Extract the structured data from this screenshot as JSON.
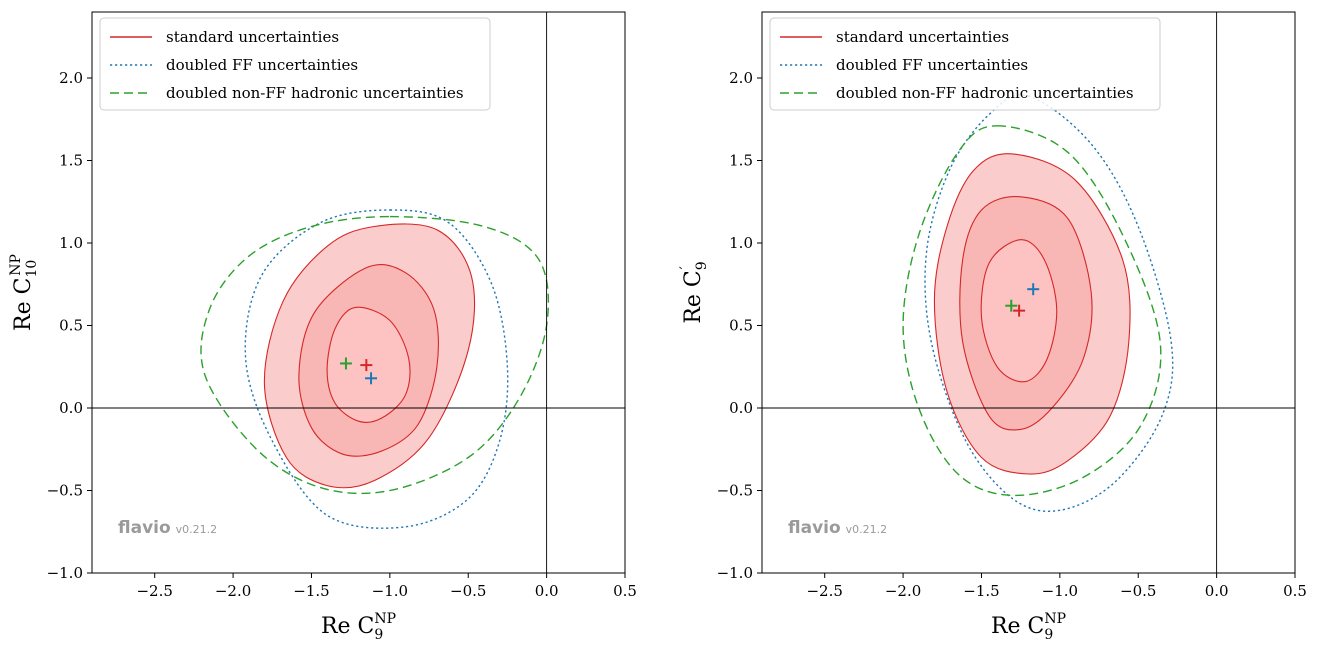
{
  "chart_data": [
    {
      "type": "contour",
      "panel": "left",
      "xlabel": {
        "main": "Re C",
        "sub": "9",
        "sup": "NP"
      },
      "ylabel": {
        "main": "Re C",
        "sub": "10",
        "sup": "NP"
      },
      "xlim": [
        -2.9,
        0.5
      ],
      "ylim": [
        -1.0,
        2.4
      ],
      "xticks": [
        -2.5,
        -2.0,
        -1.5,
        -1.0,
        -0.5,
        0.0,
        0.5
      ],
      "yticks": [
        -1.0,
        -0.5,
        0.0,
        0.5,
        1.0,
        1.5,
        2.0
      ],
      "xtick_labels": [
        "−2.5",
        "−2.0",
        "−1.5",
        "−1.0",
        "−0.5",
        "0.0",
        "0.5"
      ],
      "ytick_labels": [
        "−1.0",
        "−0.5",
        "0.0",
        "0.5",
        "1.0",
        "1.5",
        "2.0"
      ],
      "reference_lines": {
        "x": 0.0,
        "y": 0.0
      },
      "legend": {
        "location": "upper-left",
        "entries": [
          "standard uncertainties",
          "doubled FF uncertainties",
          "doubled non-FF hadronic uncertainties"
        ]
      },
      "series": [
        {
          "name": "standard uncertainties",
          "style": "solid-filled",
          "color": "#d62728",
          "contours": [
            [
              [
                -1.22,
                0.61
              ],
              [
                -1.0,
                0.53
              ],
              [
                -0.88,
                0.3
              ],
              [
                -0.9,
                0.08
              ],
              [
                -1.05,
                -0.06
              ],
              [
                -1.2,
                -0.08
              ],
              [
                -1.35,
                0.03
              ],
              [
                -1.4,
                0.23
              ],
              [
                -1.35,
                0.48
              ]
            ],
            [
              [
                -1.15,
                0.85
              ],
              [
                -0.9,
                0.82
              ],
              [
                -0.72,
                0.6
              ],
              [
                -0.7,
                0.25
              ],
              [
                -0.82,
                -0.1
              ],
              [
                -1.05,
                -0.26
              ],
              [
                -1.3,
                -0.28
              ],
              [
                -1.5,
                -0.12
              ],
              [
                -1.58,
                0.2
              ],
              [
                -1.48,
                0.58
              ]
            ],
            [
              [
                -1.1,
                1.1
              ],
              [
                -0.7,
                1.08
              ],
              [
                -0.48,
                0.8
              ],
              [
                -0.5,
                0.35
              ],
              [
                -0.75,
                -0.18
              ],
              [
                -1.1,
                -0.44
              ],
              [
                -1.4,
                -0.47
              ],
              [
                -1.66,
                -0.3
              ],
              [
                -1.8,
                0.15
              ],
              [
                -1.68,
                0.65
              ],
              [
                -1.4,
                0.98
              ]
            ]
          ],
          "best_fit": [
            -1.15,
            0.26
          ]
        },
        {
          "name": "doubled FF uncertainties",
          "style": "dotted",
          "color": "#1f77b4",
          "contours": [
            [
              [
                -1.0,
                1.2
              ],
              [
                -0.62,
                1.12
              ],
              [
                -0.35,
                0.75
              ],
              [
                -0.25,
                0.25
              ],
              [
                -0.3,
                -0.2
              ],
              [
                -0.5,
                -0.55
              ],
              [
                -0.9,
                -0.72
              ],
              [
                -1.4,
                -0.65
              ],
              [
                -1.75,
                -0.2
              ],
              [
                -1.92,
                0.3
              ],
              [
                -1.82,
                0.8
              ],
              [
                -1.45,
                1.12
              ]
            ]
          ],
          "best_fit": [
            -1.12,
            0.18
          ]
        },
        {
          "name": "doubled non-FF hadronic uncertainties",
          "style": "dashed",
          "color": "#2ca02c",
          "contours": [
            [
              [
                -1.0,
                1.16
              ],
              [
                -0.4,
                1.1
              ],
              [
                -0.05,
                0.9
              ],
              [
                0.0,
                0.5
              ],
              [
                -0.18,
                0.05
              ],
              [
                -0.5,
                -0.3
              ],
              [
                -1.0,
                -0.5
              ],
              [
                -1.45,
                -0.48
              ],
              [
                -1.85,
                -0.25
              ],
              [
                -2.18,
                0.2
              ],
              [
                -2.15,
                0.6
              ],
              [
                -1.9,
                0.92
              ],
              [
                -1.5,
                1.1
              ]
            ]
          ],
          "best_fit": [
            -1.28,
            0.27
          ]
        }
      ],
      "watermark": {
        "main": "flavio",
        "version": "v0.21.2"
      }
    },
    {
      "type": "contour",
      "panel": "right",
      "xlabel": {
        "main": "Re C",
        "sub": "9",
        "sup": "NP"
      },
      "ylabel": {
        "main": "Re C",
        "sub": "9",
        "sup": "′"
      },
      "xlim": [
        -2.9,
        0.5
      ],
      "ylim": [
        -1.0,
        2.4
      ],
      "xticks": [
        -2.5,
        -2.0,
        -1.5,
        -1.0,
        -0.5,
        0.0,
        0.5
      ],
      "yticks": [
        -1.0,
        -0.5,
        0.0,
        0.5,
        1.0,
        1.5,
        2.0
      ],
      "xtick_labels": [
        "−2.5",
        "−2.0",
        "−1.5",
        "−1.0",
        "−0.5",
        "0.0",
        "0.5"
      ],
      "ytick_labels": [
        "−1.0",
        "−0.5",
        "0.0",
        "0.5",
        "1.0",
        "1.5",
        "2.0"
      ],
      "reference_lines": {
        "x": 0.0,
        "y": 0.0
      },
      "legend": {
        "location": "upper-left",
        "entries": [
          "standard uncertainties",
          "doubled FF uncertainties",
          "doubled non-FF hadronic uncertainties"
        ]
      },
      "series": [
        {
          "name": "standard uncertainties",
          "style": "solid-filled",
          "color": "#d62728",
          "contours": [
            [
              [
                -1.25,
                1.02
              ],
              [
                -1.1,
                0.9
              ],
              [
                -1.02,
                0.6
              ],
              [
                -1.08,
                0.3
              ],
              [
                -1.22,
                0.16
              ],
              [
                -1.4,
                0.25
              ],
              [
                -1.5,
                0.55
              ],
              [
                -1.45,
                0.88
              ]
            ],
            [
              [
                -1.25,
                1.28
              ],
              [
                -0.95,
                1.15
              ],
              [
                -0.8,
                0.7
              ],
              [
                -0.85,
                0.3
              ],
              [
                -1.05,
                0.0
              ],
              [
                -1.25,
                -0.13
              ],
              [
                -1.45,
                -0.05
              ],
              [
                -1.62,
                0.4
              ],
              [
                -1.62,
                0.9
              ],
              [
                -1.5,
                1.2
              ]
            ],
            [
              [
                -1.3,
                1.54
              ],
              [
                -0.9,
                1.38
              ],
              [
                -0.6,
                0.9
              ],
              [
                -0.56,
                0.4
              ],
              [
                -0.68,
                -0.05
              ],
              [
                -0.95,
                -0.32
              ],
              [
                -1.2,
                -0.4
              ],
              [
                -1.5,
                -0.3
              ],
              [
                -1.72,
                0.1
              ],
              [
                -1.8,
                0.65
              ],
              [
                -1.72,
                1.1
              ],
              [
                -1.55,
                1.44
              ]
            ]
          ],
          "best_fit": [
            -1.26,
            0.59
          ]
        },
        {
          "name": "doubled FF uncertainties",
          "style": "dotted",
          "color": "#1f77b4",
          "contours": [
            [
              [
                -1.2,
                1.89
              ],
              [
                -0.8,
                1.6
              ],
              [
                -0.5,
                1.1
              ],
              [
                -0.29,
                0.4
              ],
              [
                -0.35,
                -0.05
              ],
              [
                -0.65,
                -0.45
              ],
              [
                -1.0,
                -0.62
              ],
              [
                -1.3,
                -0.55
              ],
              [
                -1.6,
                -0.2
              ],
              [
                -1.82,
                0.4
              ],
              [
                -1.85,
                0.95
              ],
              [
                -1.7,
                1.45
              ],
              [
                -1.45,
                1.78
              ]
            ]
          ],
          "best_fit": [
            -1.17,
            0.72
          ]
        },
        {
          "name": "doubled non-FF hadronic uncertainties",
          "style": "dashed",
          "color": "#2ca02c",
          "contours": [
            [
              [
                -1.4,
                1.71
              ],
              [
                -0.95,
                1.55
              ],
              [
                -0.6,
                1.05
              ],
              [
                -0.36,
                0.4
              ],
              [
                -0.48,
                -0.1
              ],
              [
                -0.85,
                -0.42
              ],
              [
                -1.3,
                -0.53
              ],
              [
                -1.65,
                -0.4
              ],
              [
                -1.9,
                0.0
              ],
              [
                -2.0,
                0.5
              ],
              [
                -1.9,
                1.05
              ],
              [
                -1.65,
                1.55
              ]
            ]
          ],
          "best_fit": [
            -1.31,
            0.62
          ]
        }
      ],
      "watermark": {
        "main": "flavio",
        "version": "v0.21.2"
      }
    }
  ]
}
